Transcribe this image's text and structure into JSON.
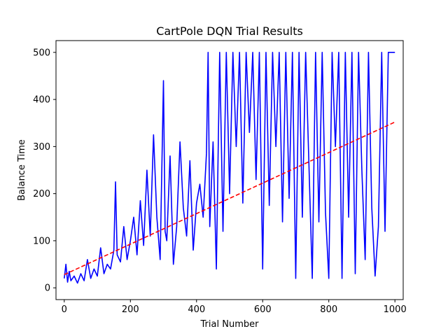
{
  "chart_data": {
    "type": "line",
    "title": "CartPole DQN Trial Results",
    "xlabel": "Trial Number",
    "ylabel": "Balance Time",
    "xlim": [
      -25,
      1025
    ],
    "ylim": [
      -25,
      525
    ],
    "xticks": [
      0,
      200,
      400,
      600,
      800,
      1000
    ],
    "yticks": [
      0,
      100,
      200,
      300,
      400,
      500
    ],
    "grid": false,
    "series": [
      {
        "style": "solid",
        "color": "#0000ff",
        "x": [
          0,
          5,
          10,
          15,
          20,
          30,
          40,
          50,
          60,
          70,
          80,
          90,
          100,
          110,
          120,
          130,
          140,
          150,
          155,
          160,
          170,
          180,
          190,
          200,
          210,
          220,
          230,
          240,
          250,
          260,
          270,
          280,
          290,
          300,
          305,
          310,
          320,
          330,
          340,
          350,
          360,
          370,
          380,
          390,
          400,
          410,
          420,
          430,
          435,
          440,
          450,
          460,
          470,
          480,
          490,
          500,
          510,
          520,
          530,
          540,
          550,
          560,
          570,
          580,
          590,
          600,
          610,
          620,
          630,
          640,
          650,
          660,
          670,
          680,
          690,
          700,
          710,
          720,
          730,
          740,
          750,
          760,
          770,
          780,
          790,
          800,
          810,
          820,
          830,
          840,
          850,
          860,
          870,
          880,
          890,
          900,
          910,
          920,
          930,
          940,
          950,
          960,
          970,
          980,
          990,
          1000
        ],
        "y": [
          20,
          50,
          12,
          35,
          15,
          25,
          10,
          30,
          15,
          60,
          20,
          40,
          25,
          85,
          30,
          50,
          40,
          80,
          225,
          70,
          55,
          130,
          60,
          100,
          150,
          70,
          185,
          90,
          250,
          110,
          325,
          150,
          60,
          440,
          120,
          100,
          280,
          50,
          130,
          310,
          170,
          110,
          270,
          80,
          180,
          220,
          150,
          285,
          500,
          130,
          310,
          40,
          500,
          120,
          500,
          200,
          500,
          300,
          500,
          180,
          500,
          330,
          500,
          230,
          500,
          40,
          500,
          175,
          500,
          300,
          500,
          140,
          500,
          190,
          500,
          20,
          500,
          150,
          500,
          260,
          20,
          500,
          140,
          500,
          160,
          20,
          500,
          300,
          500,
          20,
          500,
          150,
          500,
          30,
          500,
          250,
          60,
          500,
          170,
          25,
          130,
          500,
          120,
          500,
          500,
          500
        ]
      },
      {
        "style": "dashed",
        "color": "#ff0000",
        "x": [
          0,
          1000
        ],
        "y": [
          28,
          352
        ]
      }
    ]
  }
}
